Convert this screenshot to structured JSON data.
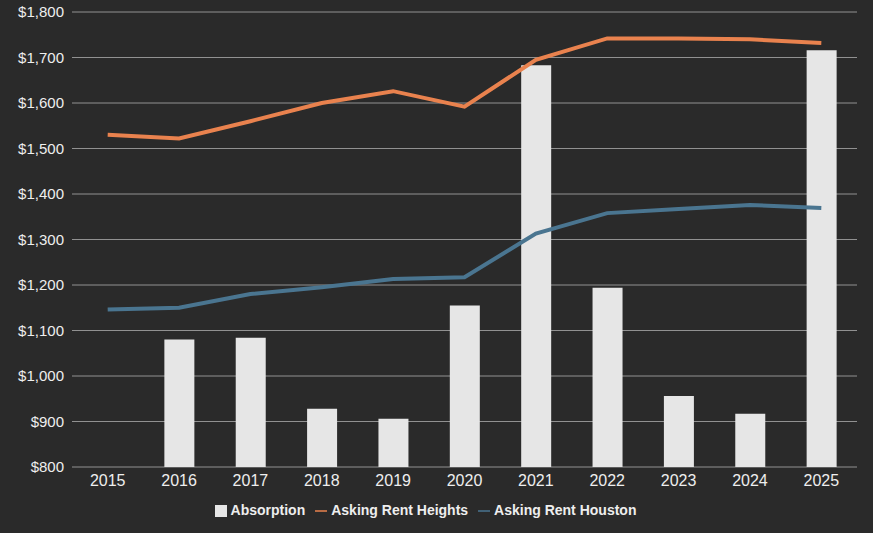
{
  "chart_data": {
    "type": "bar",
    "categories": [
      "2015",
      "2016",
      "2017",
      "2018",
      "2019",
      "2020",
      "2021",
      "2022",
      "2023",
      "2024",
      "2025"
    ],
    "series": [
      {
        "name": "Absorption",
        "type": "bar",
        "color": "#e6e6e6",
        "values": [
          null,
          1080,
          1084,
          928,
          906,
          1155,
          1683,
          1194,
          956,
          917,
          1716
        ]
      },
      {
        "name": "Asking Rent Heights",
        "type": "line",
        "color": "#e9824e",
        "values": [
          1530,
          1522,
          1560,
          1600,
          1626,
          1592,
          1695,
          1742,
          1742,
          1740,
          1732
        ]
      },
      {
        "name": "Asking Rent Houston",
        "type": "line",
        "color": "#4a7590",
        "values": [
          1146,
          1150,
          1180,
          1195,
          1213,
          1217,
          1313,
          1358,
          1367,
          1376,
          1369
        ]
      }
    ],
    "ylim": [
      800,
      1800
    ],
    "yticks": [
      {
        "value": 800,
        "label": "$800"
      },
      {
        "value": 900,
        "label": "$900"
      },
      {
        "value": 1000,
        "label": "$1,000"
      },
      {
        "value": 1100,
        "label": "$1,100"
      },
      {
        "value": 1200,
        "label": "$1,200"
      },
      {
        "value": 1300,
        "label": "$1,300"
      },
      {
        "value": 1400,
        "label": "$1,400"
      },
      {
        "value": 1500,
        "label": "$1,500"
      },
      {
        "value": 1600,
        "label": "$1,600"
      },
      {
        "value": 1700,
        "label": "$1,700"
      },
      {
        "value": 1800,
        "label": "$1,800"
      }
    ],
    "grid": true,
    "legend": "bottom"
  }
}
